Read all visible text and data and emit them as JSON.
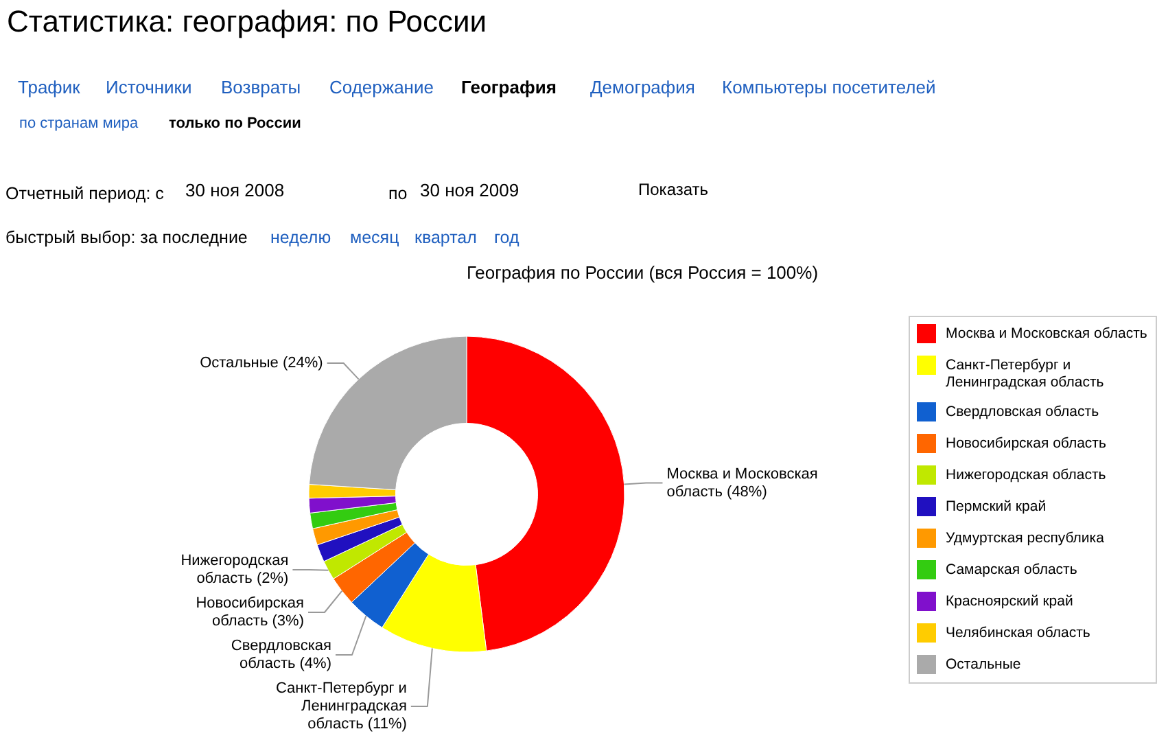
{
  "chart_data": {
    "type": "donut",
    "title": "Статистика: география: по России",
    "subtitle": "География по России (вся Россия = 100%)",
    "categories": [
      "Москва и Московская область",
      "Санкт-Петербург и Ленинградская область",
      "Свердловская область",
      "Новосибирская область",
      "Нижегородская область",
      "Пермский край",
      "Удмуртская республика",
      "Самарская область",
      "Красноярский край",
      "Челябинская область",
      "Остальные"
    ],
    "values": [
      48,
      11,
      4,
      3,
      2,
      1.8,
      1.7,
      1.6,
      1.5,
      1.4,
      24
    ],
    "colors": [
      "#ff0000",
      "#ffff00",
      "#1060d0",
      "#ff6600",
      "#c0e800",
      "#2010c0",
      "#ff9900",
      "#33cc11",
      "#8010cc",
      "#ffcc00",
      "#aaaaaa"
    ],
    "value_labels": [
      "Москва и Московская область (48%)",
      "Санкт-Петербург и Ленинградская область (11%)",
      "Свердловская область (4%)",
      "Новосибирская область (3%)",
      "Нижегородская область (2%)",
      null,
      null,
      null,
      null,
      null,
      "Остальные (24%)"
    ],
    "legend": "right",
    "annotations": [
      "Трафик",
      "Источники",
      "Возвраты",
      "Содержание",
      "География",
      "Демография",
      "Компьютеры посетителей",
      "по странам мира",
      "только по России",
      "Отчетный период: с",
      "30 ноя 2008",
      "по",
      "30 ноя 2009",
      "Показать",
      "быстрый выбор: за последние",
      "неделю",
      "месяц",
      "квартал",
      "год"
    ]
  }
}
